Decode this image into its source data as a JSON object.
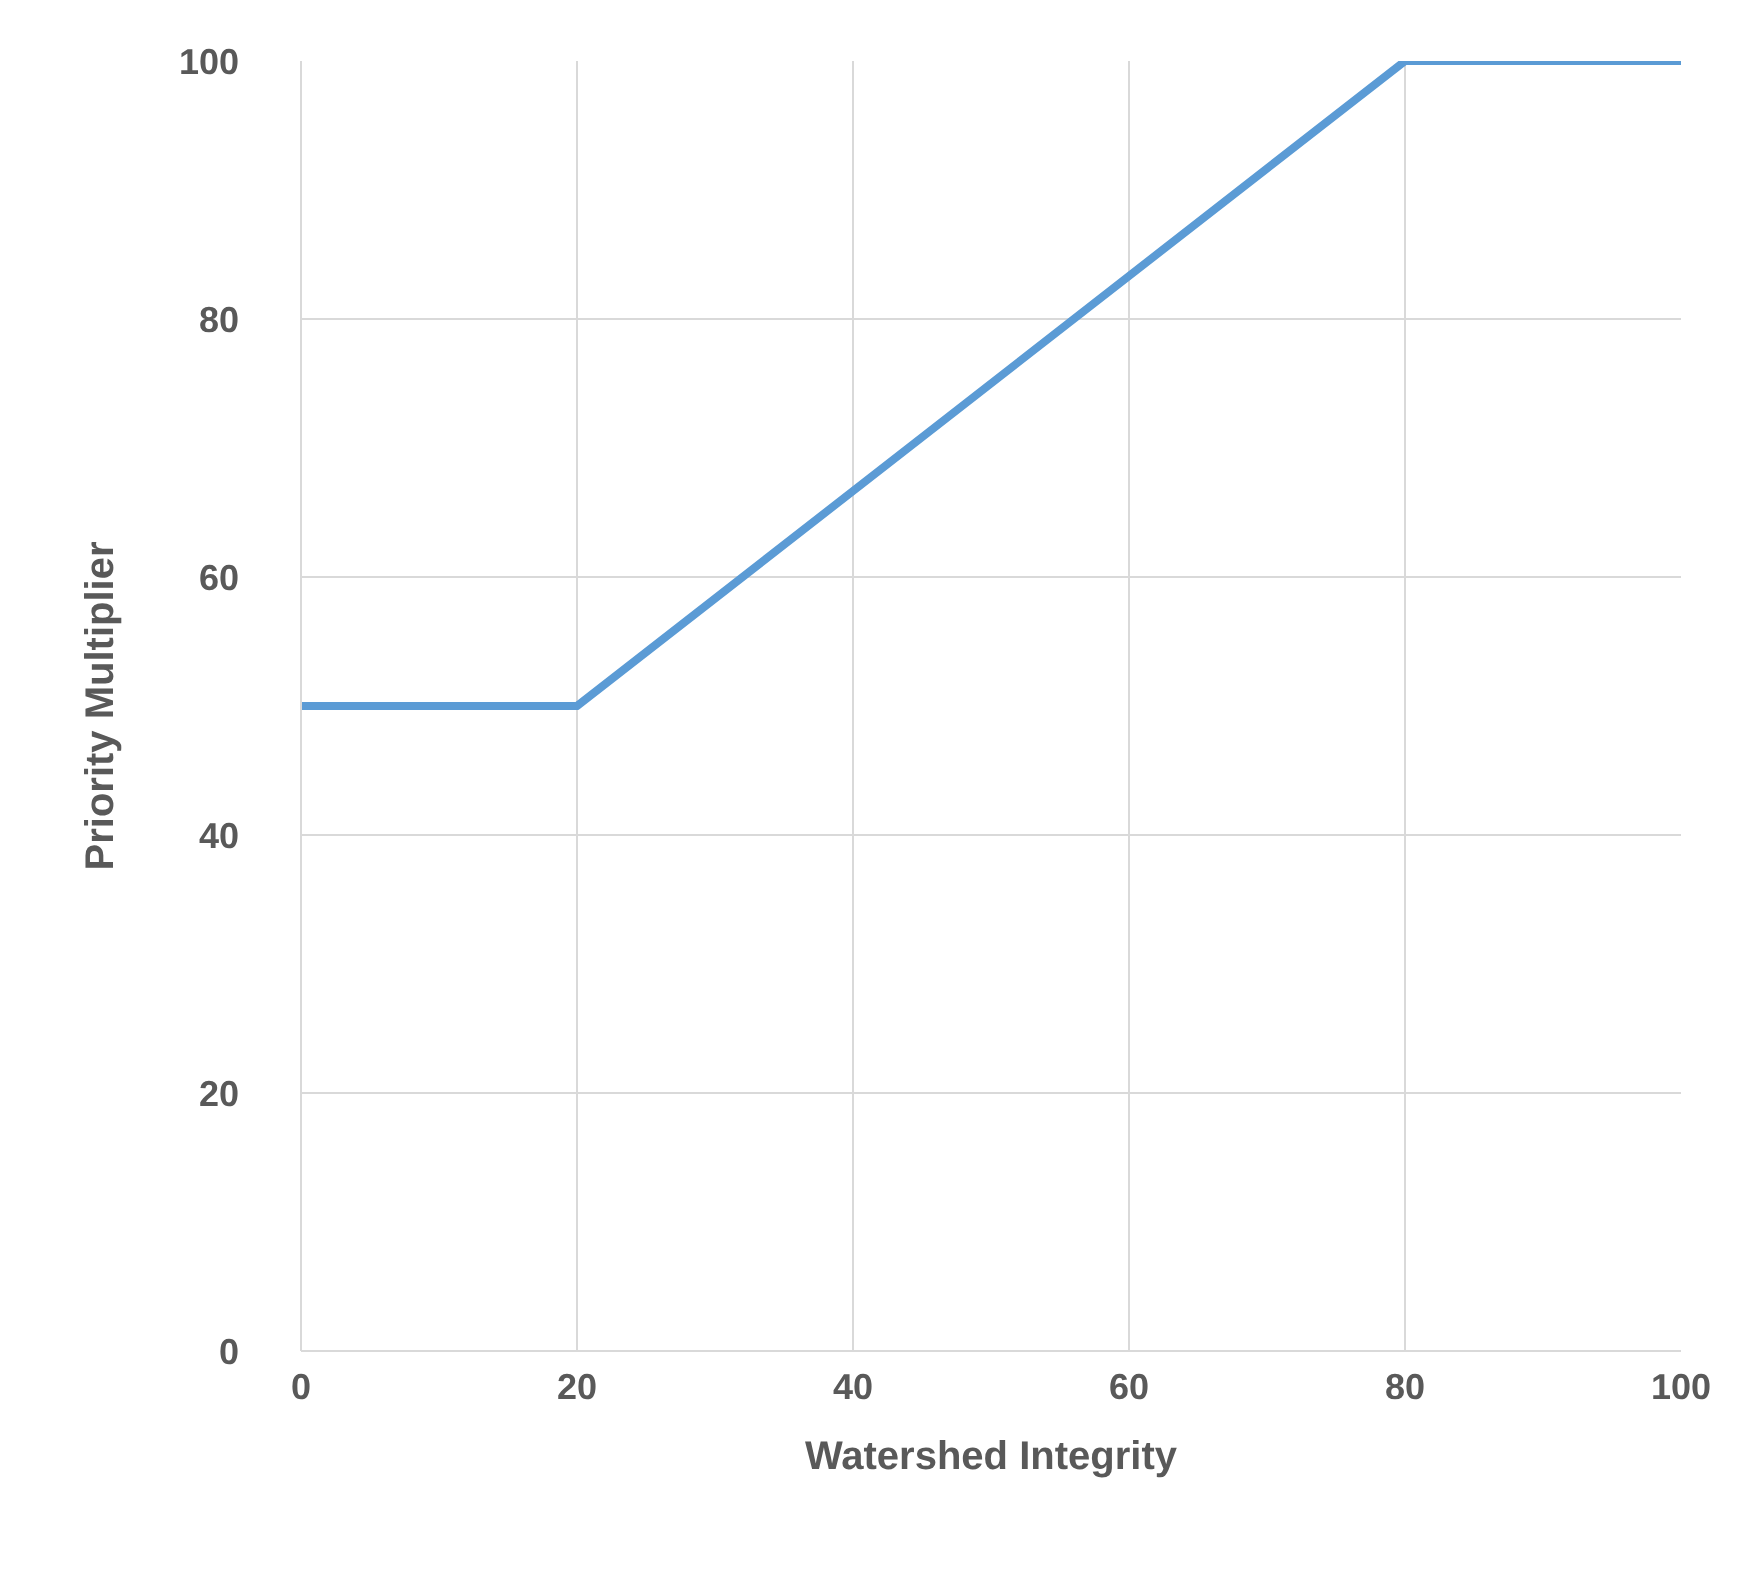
{
  "chart_data": {
    "type": "line",
    "xlabel": "Watershed Integrity",
    "ylabel": "Priority Multiplier",
    "x": [
      0,
      20,
      80,
      100
    ],
    "series": [
      {
        "color": "#5b9bd5",
        "values": [
          50,
          50,
          100,
          100
        ]
      }
    ],
    "xlim": [
      0,
      100
    ],
    "ylim": [
      0,
      100
    ],
    "xticks": [
      0,
      20,
      40,
      60,
      80,
      100
    ],
    "yticks": [
      0,
      20,
      40,
      60,
      80,
      100
    ],
    "grid": true,
    "marker": "none",
    "line_style": "solid"
  }
}
